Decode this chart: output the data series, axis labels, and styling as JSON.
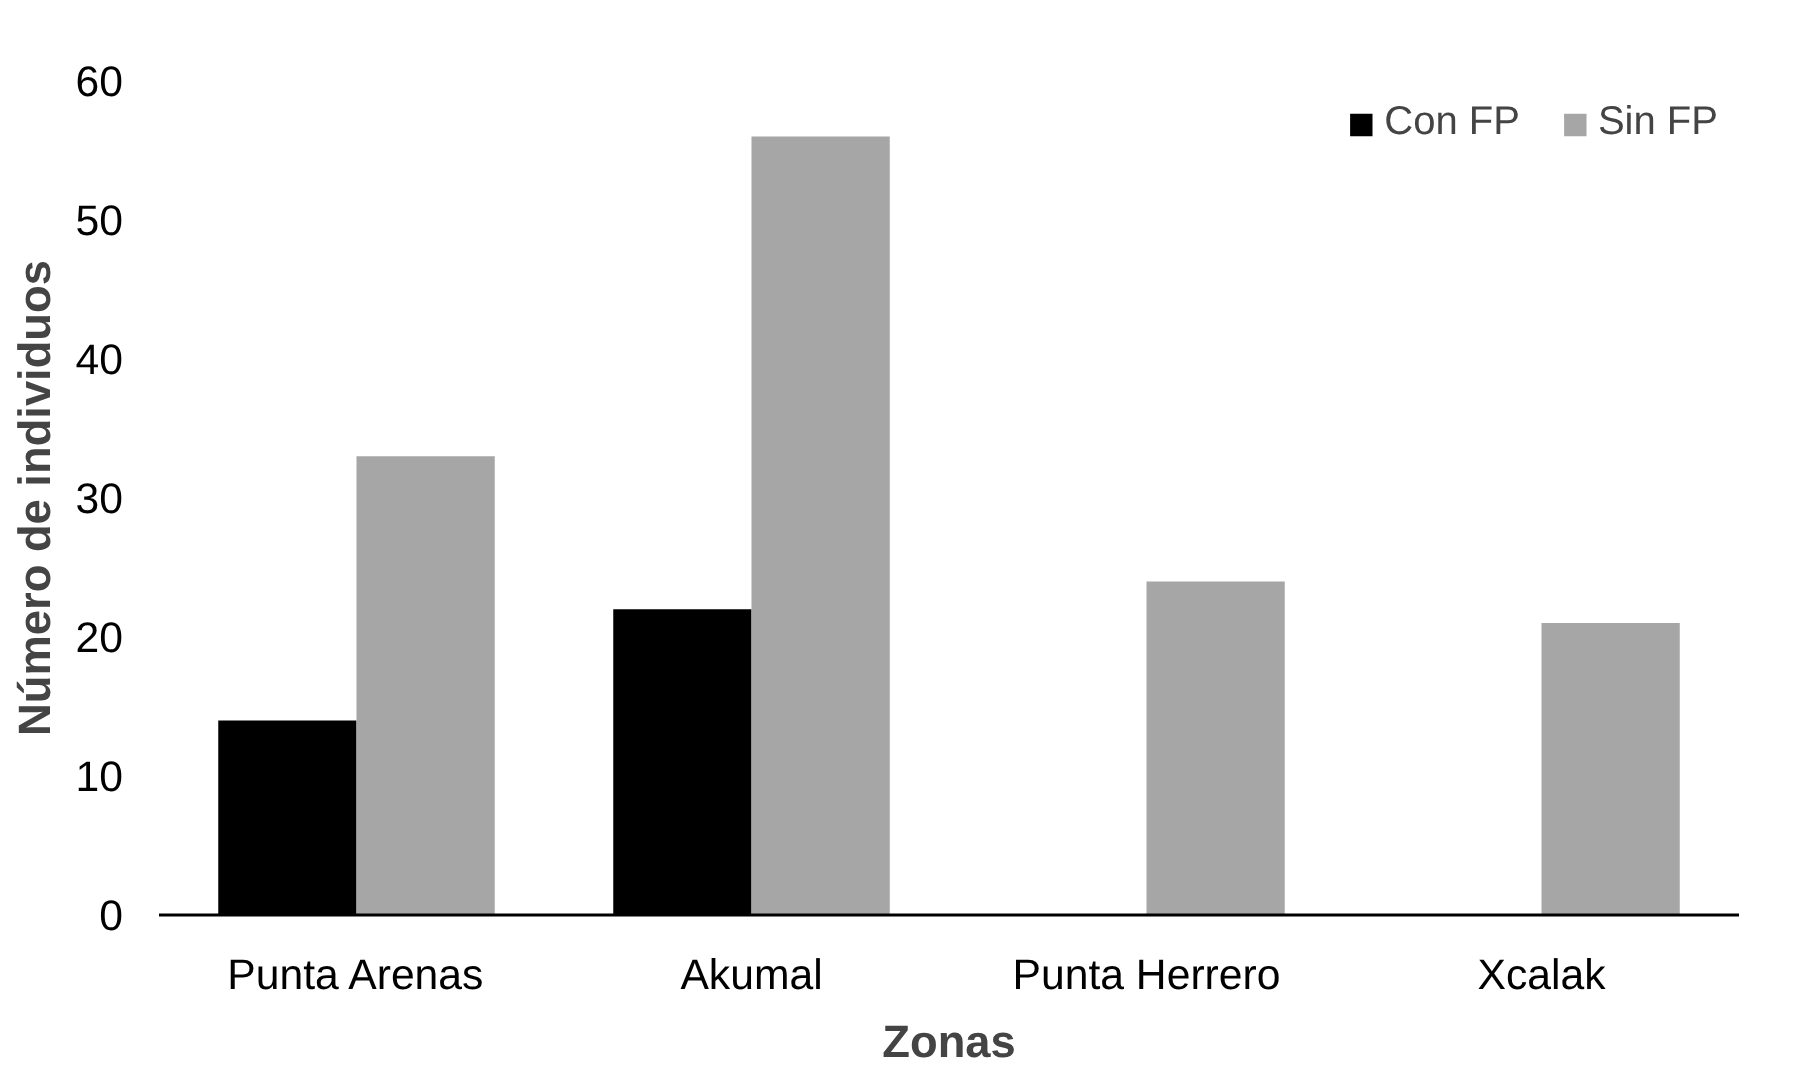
{
  "chart_data": {
    "type": "bar",
    "xlabel": "Zonas",
    "ylabel": "Número de individuos",
    "categories": [
      "Punta Arenas",
      "Akumal",
      "Punta Herrero",
      "Xcalak"
    ],
    "series": [
      {
        "name": "Con FP",
        "color": "#000000",
        "values": [
          14,
          22,
          0,
          0
        ]
      },
      {
        "name": "Sin FP",
        "color": "#a6a6a6",
        "values": [
          33,
          56,
          24,
          21
        ]
      }
    ],
    "ylim": [
      0,
      60
    ],
    "yticks": [
      0,
      10,
      20,
      30,
      40,
      50,
      60
    ],
    "grid": false,
    "legend": "top right"
  }
}
